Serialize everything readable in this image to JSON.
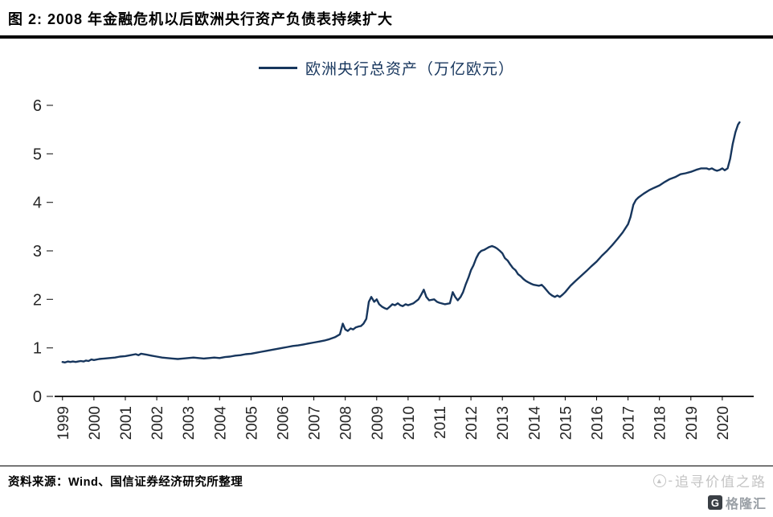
{
  "header": {
    "title": "图 2: 2008 年金融危机以后欧洲央行资产负债表持续扩大"
  },
  "footer": {
    "source": "资料来源：Wind、国信证券经济研究所整理"
  },
  "watermark": {
    "text": "追寻价值之路",
    "brand": "格隆汇",
    "brand_letter": "G"
  },
  "chart_data": {
    "type": "line",
    "title": "图 2: 2008 年金融危机以后欧洲央行资产负债表持续扩大",
    "legend": [
      "欧洲央行总资产（万亿欧元）"
    ],
    "legend_position": "top",
    "line_color": "#17365d",
    "grid": false,
    "xlabel": "",
    "ylabel": "",
    "ylim": [
      0,
      6
    ],
    "yticks": [
      0,
      1,
      2,
      3,
      4,
      5,
      6
    ],
    "xlim": [
      1998.75,
      2021.0
    ],
    "xticks": [
      1999,
      2000,
      2001,
      2002,
      2003,
      2004,
      2005,
      2006,
      2007,
      2008,
      2009,
      2010,
      2011,
      2012,
      2013,
      2014,
      2015,
      2016,
      2017,
      2018,
      2019,
      2020
    ],
    "series": [
      {
        "name": "欧洲央行总资产（万亿欧元）",
        "points": [
          [
            1999.0,
            0.71
          ],
          [
            1999.08,
            0.7
          ],
          [
            1999.17,
            0.72
          ],
          [
            1999.25,
            0.71
          ],
          [
            1999.33,
            0.72
          ],
          [
            1999.42,
            0.71
          ],
          [
            1999.5,
            0.72
          ],
          [
            1999.58,
            0.73
          ],
          [
            1999.67,
            0.72
          ],
          [
            1999.75,
            0.74
          ],
          [
            1999.83,
            0.73
          ],
          [
            1999.92,
            0.76
          ],
          [
            2000.0,
            0.75
          ],
          [
            2000.17,
            0.77
          ],
          [
            2000.33,
            0.78
          ],
          [
            2000.5,
            0.79
          ],
          [
            2000.67,
            0.8
          ],
          [
            2000.83,
            0.82
          ],
          [
            2001.0,
            0.83
          ],
          [
            2001.17,
            0.85
          ],
          [
            2001.33,
            0.87
          ],
          [
            2001.42,
            0.85
          ],
          [
            2001.5,
            0.88
          ],
          [
            2001.67,
            0.86
          ],
          [
            2001.83,
            0.84
          ],
          [
            2002.0,
            0.82
          ],
          [
            2002.17,
            0.8
          ],
          [
            2002.33,
            0.79
          ],
          [
            2002.5,
            0.78
          ],
          [
            2002.67,
            0.77
          ],
          [
            2002.83,
            0.78
          ],
          [
            2003.0,
            0.79
          ],
          [
            2003.17,
            0.8
          ],
          [
            2003.33,
            0.79
          ],
          [
            2003.5,
            0.78
          ],
          [
            2003.67,
            0.79
          ],
          [
            2003.83,
            0.8
          ],
          [
            2004.0,
            0.79
          ],
          [
            2004.17,
            0.81
          ],
          [
            2004.33,
            0.82
          ],
          [
            2004.5,
            0.84
          ],
          [
            2004.67,
            0.85
          ],
          [
            2004.83,
            0.87
          ],
          [
            2005.0,
            0.88
          ],
          [
            2005.17,
            0.9
          ],
          [
            2005.33,
            0.92
          ],
          [
            2005.5,
            0.94
          ],
          [
            2005.67,
            0.96
          ],
          [
            2005.83,
            0.98
          ],
          [
            2006.0,
            1.0
          ],
          [
            2006.17,
            1.02
          ],
          [
            2006.33,
            1.04
          ],
          [
            2006.5,
            1.05
          ],
          [
            2006.67,
            1.07
          ],
          [
            2006.83,
            1.09
          ],
          [
            2007.0,
            1.11
          ],
          [
            2007.17,
            1.13
          ],
          [
            2007.33,
            1.15
          ],
          [
            2007.5,
            1.18
          ],
          [
            2007.67,
            1.22
          ],
          [
            2007.83,
            1.28
          ],
          [
            2007.92,
            1.5
          ],
          [
            2008.0,
            1.38
          ],
          [
            2008.08,
            1.35
          ],
          [
            2008.17,
            1.4
          ],
          [
            2008.25,
            1.38
          ],
          [
            2008.33,
            1.42
          ],
          [
            2008.42,
            1.44
          ],
          [
            2008.5,
            1.45
          ],
          [
            2008.58,
            1.5
          ],
          [
            2008.67,
            1.6
          ],
          [
            2008.75,
            1.95
          ],
          [
            2008.83,
            2.05
          ],
          [
            2008.92,
            1.95
          ],
          [
            2009.0,
            2.0
          ],
          [
            2009.08,
            1.9
          ],
          [
            2009.17,
            1.85
          ],
          [
            2009.25,
            1.82
          ],
          [
            2009.33,
            1.8
          ],
          [
            2009.42,
            1.85
          ],
          [
            2009.5,
            1.9
          ],
          [
            2009.58,
            1.88
          ],
          [
            2009.67,
            1.92
          ],
          [
            2009.75,
            1.88
          ],
          [
            2009.83,
            1.86
          ],
          [
            2009.92,
            1.9
          ],
          [
            2010.0,
            1.88
          ],
          [
            2010.17,
            1.92
          ],
          [
            2010.33,
            2.0
          ],
          [
            2010.42,
            2.1
          ],
          [
            2010.5,
            2.2
          ],
          [
            2010.58,
            2.05
          ],
          [
            2010.67,
            1.98
          ],
          [
            2010.83,
            2.0
          ],
          [
            2010.92,
            1.95
          ],
          [
            2011.0,
            1.93
          ],
          [
            2011.17,
            1.9
          ],
          [
            2011.33,
            1.92
          ],
          [
            2011.42,
            2.15
          ],
          [
            2011.5,
            2.05
          ],
          [
            2011.58,
            1.98
          ],
          [
            2011.67,
            2.05
          ],
          [
            2011.75,
            2.15
          ],
          [
            2011.83,
            2.3
          ],
          [
            2011.92,
            2.45
          ],
          [
            2012.0,
            2.6
          ],
          [
            2012.08,
            2.7
          ],
          [
            2012.17,
            2.85
          ],
          [
            2012.25,
            2.95
          ],
          [
            2012.33,
            3.0
          ],
          [
            2012.42,
            3.02
          ],
          [
            2012.5,
            3.05
          ],
          [
            2012.58,
            3.08
          ],
          [
            2012.67,
            3.1
          ],
          [
            2012.75,
            3.08
          ],
          [
            2012.83,
            3.05
          ],
          [
            2012.92,
            3.0
          ],
          [
            2013.0,
            2.95
          ],
          [
            2013.08,
            2.85
          ],
          [
            2013.17,
            2.8
          ],
          [
            2013.25,
            2.72
          ],
          [
            2013.33,
            2.65
          ],
          [
            2013.42,
            2.6
          ],
          [
            2013.5,
            2.52
          ],
          [
            2013.58,
            2.48
          ],
          [
            2013.67,
            2.42
          ],
          [
            2013.75,
            2.38
          ],
          [
            2013.83,
            2.35
          ],
          [
            2013.92,
            2.32
          ],
          [
            2014.0,
            2.3
          ],
          [
            2014.17,
            2.28
          ],
          [
            2014.25,
            2.3
          ],
          [
            2014.33,
            2.25
          ],
          [
            2014.42,
            2.18
          ],
          [
            2014.5,
            2.12
          ],
          [
            2014.58,
            2.08
          ],
          [
            2014.67,
            2.05
          ],
          [
            2014.75,
            2.08
          ],
          [
            2014.83,
            2.05
          ],
          [
            2014.92,
            2.1
          ],
          [
            2015.0,
            2.15
          ],
          [
            2015.17,
            2.28
          ],
          [
            2015.33,
            2.38
          ],
          [
            2015.5,
            2.48
          ],
          [
            2015.67,
            2.58
          ],
          [
            2015.83,
            2.68
          ],
          [
            2016.0,
            2.78
          ],
          [
            2016.17,
            2.9
          ],
          [
            2016.33,
            3.0
          ],
          [
            2016.5,
            3.12
          ],
          [
            2016.67,
            3.25
          ],
          [
            2016.83,
            3.38
          ],
          [
            2017.0,
            3.55
          ],
          [
            2017.08,
            3.7
          ],
          [
            2017.17,
            3.95
          ],
          [
            2017.25,
            4.05
          ],
          [
            2017.33,
            4.1
          ],
          [
            2017.5,
            4.18
          ],
          [
            2017.67,
            4.25
          ],
          [
            2017.83,
            4.3
          ],
          [
            2018.0,
            4.35
          ],
          [
            2018.17,
            4.42
          ],
          [
            2018.33,
            4.48
          ],
          [
            2018.5,
            4.52
          ],
          [
            2018.67,
            4.58
          ],
          [
            2018.83,
            4.6
          ],
          [
            2019.0,
            4.63
          ],
          [
            2019.17,
            4.67
          ],
          [
            2019.33,
            4.7
          ],
          [
            2019.5,
            4.7
          ],
          [
            2019.58,
            4.68
          ],
          [
            2019.67,
            4.7
          ],
          [
            2019.75,
            4.67
          ],
          [
            2019.83,
            4.65
          ],
          [
            2019.92,
            4.67
          ],
          [
            2020.0,
            4.7
          ],
          [
            2020.08,
            4.66
          ],
          [
            2020.17,
            4.7
          ],
          [
            2020.25,
            4.9
          ],
          [
            2020.33,
            5.2
          ],
          [
            2020.42,
            5.45
          ],
          [
            2020.5,
            5.6
          ],
          [
            2020.55,
            5.65
          ]
        ]
      }
    ]
  }
}
